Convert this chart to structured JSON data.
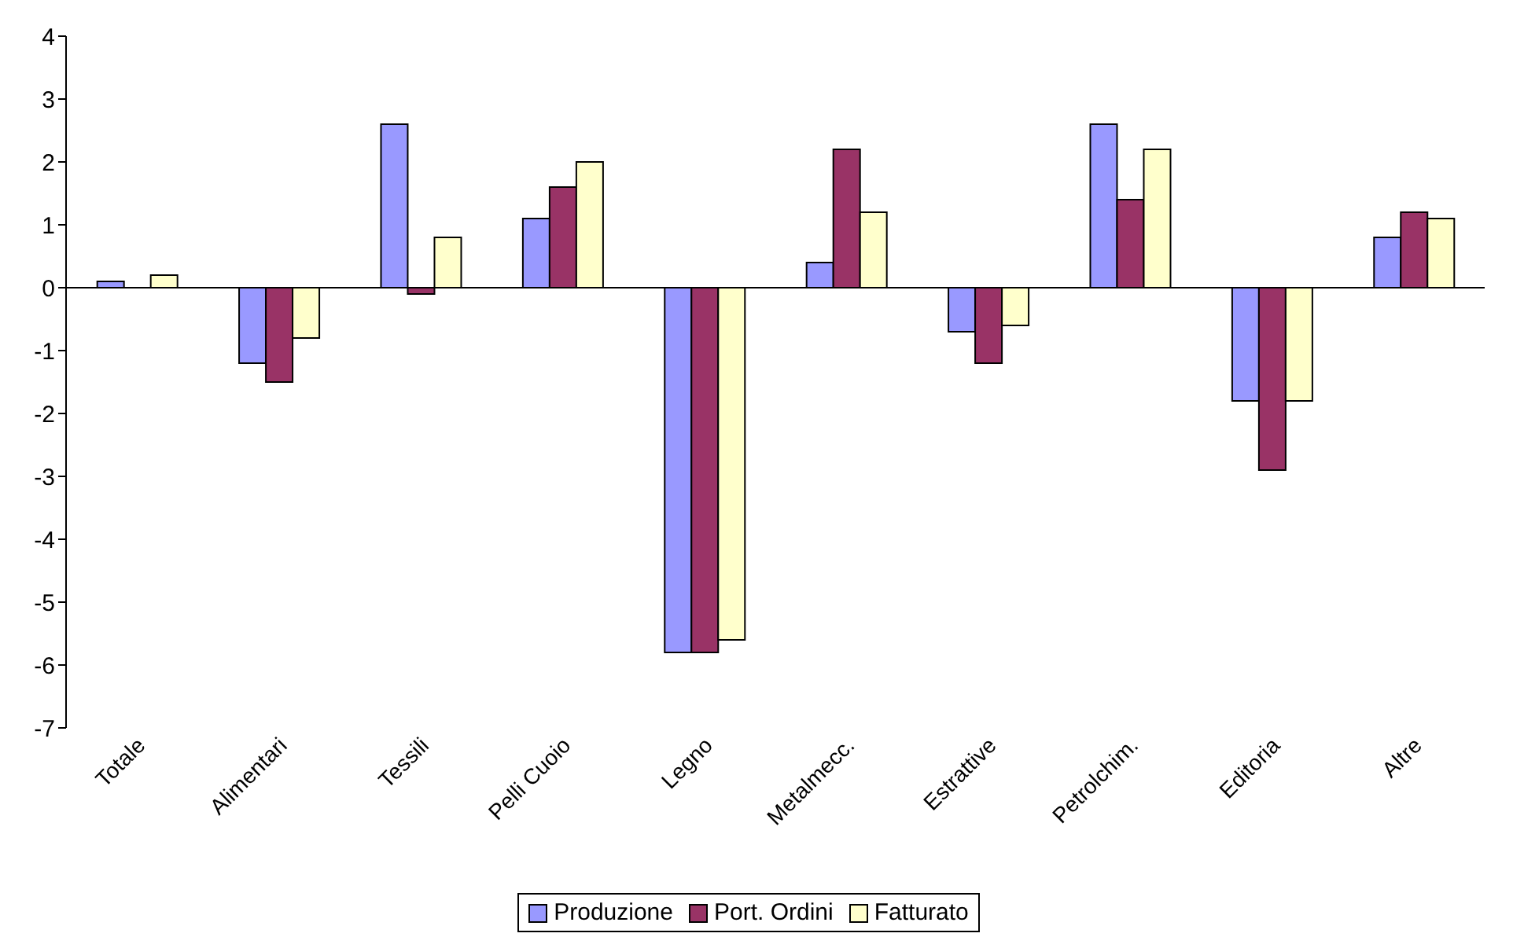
{
  "chart_data": {
    "type": "bar",
    "categories": [
      "Totale",
      "Alimentari",
      "Tessili",
      "Pelli Cuoio",
      "Legno",
      "Metalmecc.",
      "Estrattive",
      "Petrolchim.",
      "Editoria",
      "Altre"
    ],
    "series": [
      {
        "name": "Produzione",
        "color": "#9999ff",
        "values": [
          0.1,
          -1.2,
          2.6,
          1.1,
          -5.8,
          0.4,
          -0.7,
          2.6,
          -1.8,
          0.8
        ]
      },
      {
        "name": "Port. Ordini",
        "color": "#993366",
        "values": [
          0,
          -1.5,
          -0.1,
          1.6,
          -5.8,
          2.2,
          -1.2,
          1.4,
          -2.9,
          1.2
        ]
      },
      {
        "name": "Fatturato",
        "color": "#ffffcc",
        "values": [
          0.2,
          -0.8,
          0.8,
          2.0,
          -5.6,
          1.2,
          -0.6,
          2.2,
          -1.8,
          1.1
        ]
      }
    ],
    "ylim": [
      -7,
      4
    ],
    "yticks": [
      -7,
      -6,
      -5,
      -4,
      -3,
      -2,
      -1,
      0,
      1,
      2,
      3,
      4
    ],
    "legend": "bottom"
  }
}
